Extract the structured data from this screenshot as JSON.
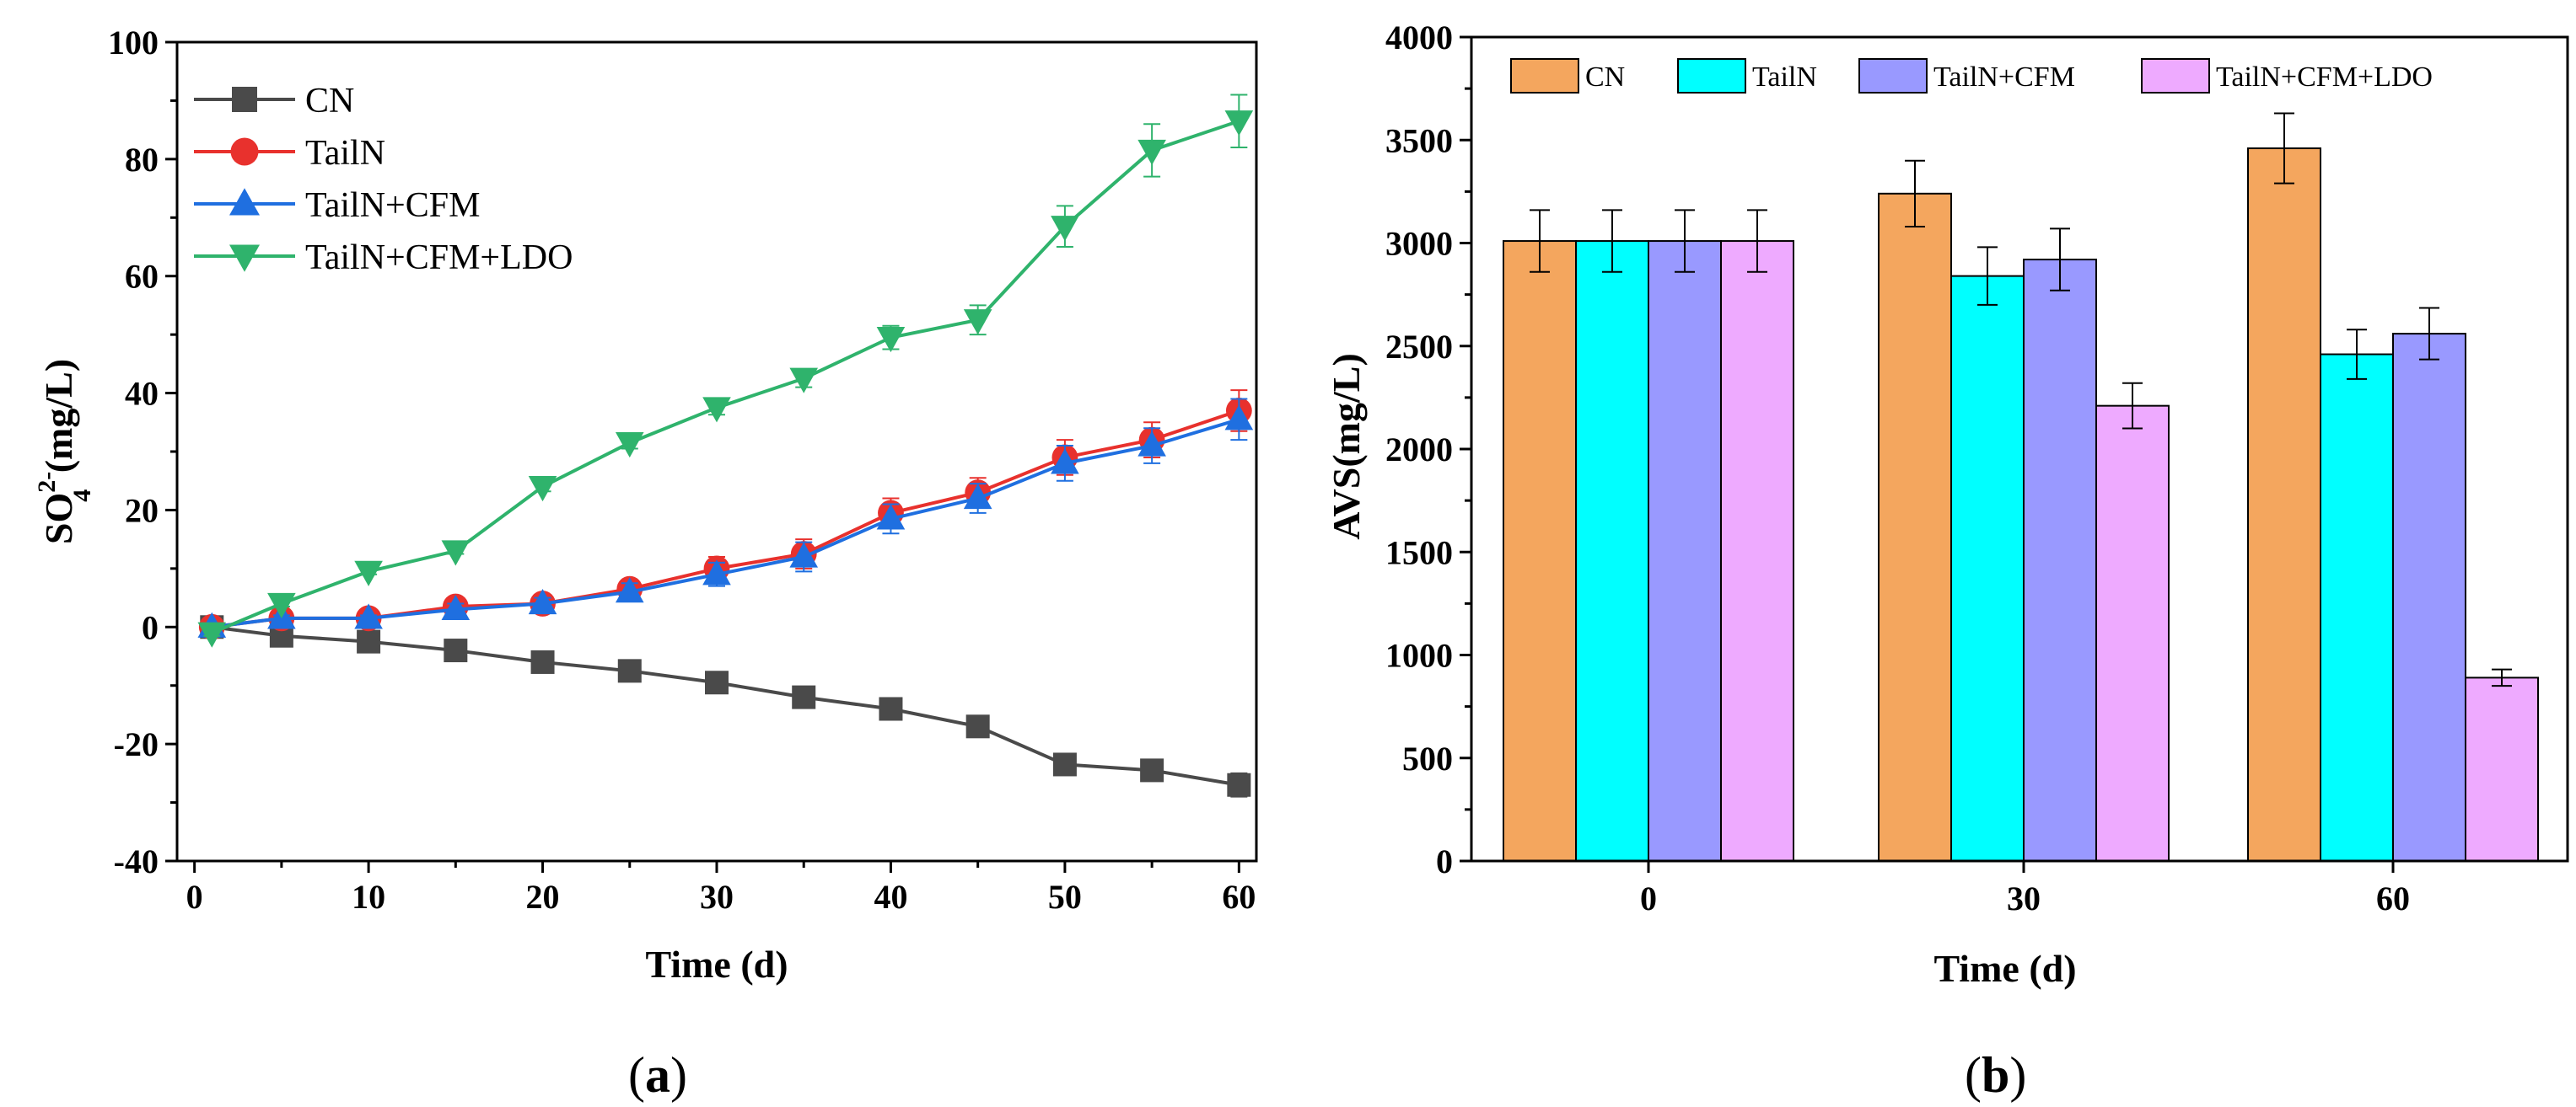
{
  "chart_data": [
    {
      "panel": "a",
      "type": "line",
      "panel_label_prefix": "(",
      "panel_label_letter": "a",
      "panel_label_suffix": ")",
      "xlabel": "Time (d)",
      "ylabel_main": "SO",
      "ylabel_sup": "2-",
      "ylabel_sub": "4",
      "ylabel_unit": " (mg/L)",
      "xlim": [
        -1,
        61
      ],
      "ylim": [
        -40,
        100
      ],
      "xticks": [
        0,
        10,
        20,
        30,
        40,
        50,
        60
      ],
      "yticks": [
        -40,
        -20,
        0,
        20,
        40,
        60,
        80,
        100
      ],
      "xtick_labels": [
        "0",
        "10",
        "20",
        "30",
        "40",
        "50",
        "60"
      ],
      "ytick_labels": [
        "-40",
        "-20",
        "0",
        "20",
        "40",
        "60",
        "80",
        "100"
      ],
      "legend_position": "top-left",
      "x": [
        1,
        5,
        10,
        15,
        20,
        25,
        30,
        35,
        40,
        45,
        50,
        55,
        60
      ],
      "series": [
        {
          "name": "CN",
          "color": "#4a4a4a",
          "marker": "square",
          "values": [
            0,
            -1.5,
            -2.5,
            -4,
            -6,
            -7.5,
            -9.5,
            -12,
            -14,
            -17,
            -23.5,
            -24.5,
            -27
          ],
          "errors": [
            0.5,
            0.5,
            0.5,
            0.5,
            0.6,
            0.6,
            0.6,
            0.8,
            0.8,
            0.8,
            1.5,
            1.5,
            2
          ]
        },
        {
          "name": "TailN",
          "color": "#e8312d",
          "marker": "circle",
          "values": [
            0,
            1.5,
            1.5,
            3.5,
            4,
            6.5,
            10,
            12.5,
            19.5,
            23,
            29,
            32,
            37
          ],
          "errors": [
            0.5,
            0.5,
            0.5,
            1,
            1,
            1.5,
            2,
            2.5,
            2.5,
            2.5,
            3,
            3,
            3.5
          ]
        },
        {
          "name": "TailN+CFM",
          "color": "#1f6fe0",
          "marker": "triangle-up",
          "values": [
            0,
            1.5,
            1.5,
            3,
            4,
            6,
            9,
            12,
            18.5,
            22,
            28,
            31,
            35.5
          ],
          "errors": [
            0.5,
            0.5,
            0.5,
            1,
            1,
            1.5,
            2,
            2.5,
            2.5,
            2.5,
            3,
            3,
            3.5
          ]
        },
        {
          "name": "TailN+CFM+LDO",
          "color": "#2fb36c",
          "marker": "triangle-down",
          "values": [
            -1,
            4,
            9.5,
            13,
            24,
            31.5,
            37.5,
            42.5,
            49.5,
            52.5,
            68.5,
            81.5,
            86.5
          ],
          "errors": [
            0.5,
            0.5,
            0.5,
            0.5,
            0.8,
            1,
            1.2,
            1.5,
            2,
            2.5,
            3.5,
            4.5,
            4.5
          ]
        }
      ]
    },
    {
      "panel": "b",
      "type": "bar",
      "panel_label_prefix": "(",
      "panel_label_letter": "b",
      "panel_label_suffix": ")",
      "xlabel": "Time (d)",
      "ylabel": "AVS(mg/L)",
      "ylim": [
        0,
        4000
      ],
      "yticks": [
        0,
        500,
        1000,
        1500,
        2000,
        2500,
        3000,
        3500,
        4000
      ],
      "ytick_labels": [
        "0",
        "500",
        "1000",
        "1500",
        "2000",
        "2500",
        "3000",
        "3500",
        "4000"
      ],
      "categories": [
        "0",
        "30",
        "60"
      ],
      "legend_position": "top",
      "series": [
        {
          "name": "CN",
          "color": "#f4a65e",
          "values": [
            3010,
            3240,
            3460
          ],
          "errors": [
            150,
            160,
            170
          ]
        },
        {
          "name": "TailN",
          "color": "#00ffff",
          "values": [
            3010,
            2840,
            2460
          ],
          "errors": [
            150,
            140,
            120
          ]
        },
        {
          "name": "TailN+CFM",
          "color": "#9999ff",
          "values": [
            3010,
            2920,
            2560
          ],
          "errors": [
            150,
            150,
            125
          ]
        },
        {
          "name": "TailN+CFM+LDO",
          "color": "#eeaaff",
          "values": [
            3010,
            2210,
            890
          ],
          "errors": [
            150,
            110,
            40
          ]
        }
      ]
    }
  ]
}
